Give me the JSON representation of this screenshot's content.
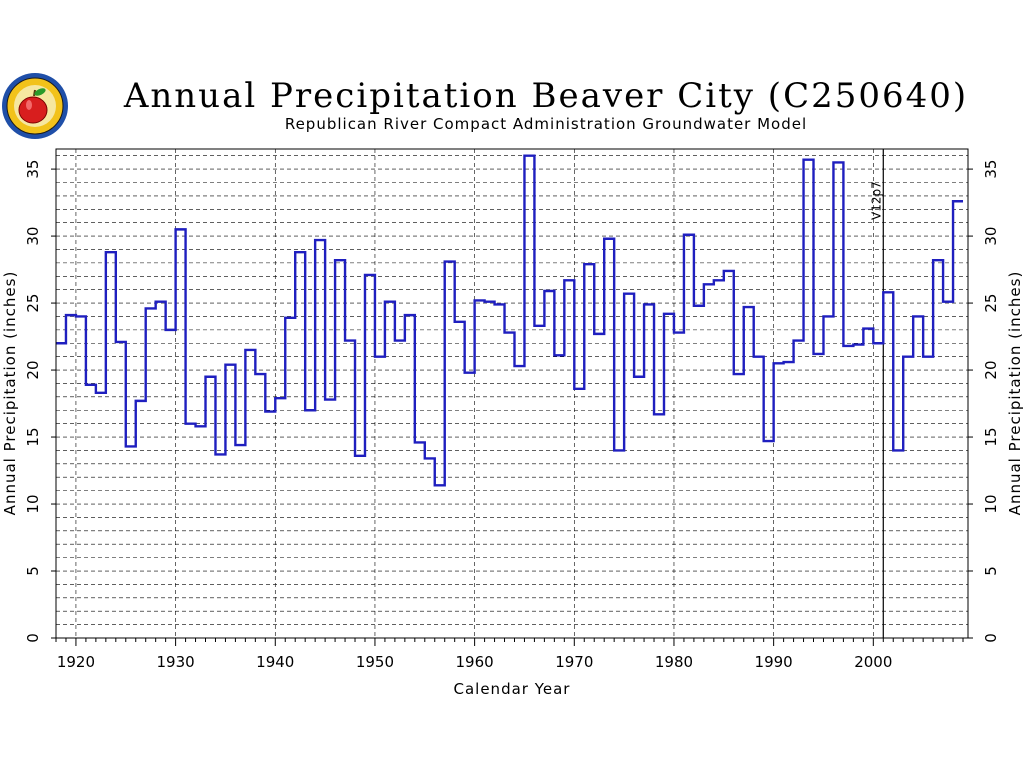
{
  "chart_data": {
    "type": "line",
    "step": true,
    "title": "Annual Precipitation Beaver City (C250640)",
    "subtitle": "Republican River Compact Administration Groundwater Model",
    "xlabel": "Calendar Year",
    "ylabel": "Annual Precipitation (inches)",
    "ylabel_right": "Annual Precipitation (inches)",
    "xlim": [
      1918,
      2009.5
    ],
    "ylim": [
      0,
      36.5
    ],
    "x_ticks": [
      1920,
      1930,
      1940,
      1950,
      1960,
      1970,
      1980,
      1990,
      2000
    ],
    "y_ticks": [
      0,
      5,
      10,
      15,
      20,
      25,
      30,
      35
    ],
    "grid": true,
    "vertical_marker": {
      "x": 2001,
      "label": "V12p7"
    },
    "series": [
      {
        "color": "#1f1fbf",
        "x": [
          1918,
          1919,
          1920,
          1921,
          1922,
          1923,
          1924,
          1925,
          1926,
          1927,
          1928,
          1929,
          1930,
          1931,
          1932,
          1933,
          1934,
          1935,
          1936,
          1937,
          1938,
          1939,
          1940,
          1941,
          1942,
          1943,
          1944,
          1945,
          1946,
          1947,
          1948,
          1949,
          1950,
          1951,
          1952,
          1953,
          1954,
          1955,
          1956,
          1957,
          1958,
          1959,
          1960,
          1961,
          1962,
          1963,
          1964,
          1965,
          1966,
          1967,
          1968,
          1969,
          1970,
          1971,
          1972,
          1973,
          1974,
          1975,
          1976,
          1977,
          1978,
          1979,
          1980,
          1981,
          1982,
          1983,
          1984,
          1985,
          1986,
          1987,
          1988,
          1989,
          1990,
          1991,
          1992,
          1993,
          1994,
          1995,
          1996,
          1997,
          1998,
          1999,
          2000,
          2001,
          2002,
          2003,
          2004,
          2005,
          2006,
          2007,
          2008
        ],
        "values": [
          22.0,
          24.1,
          24.0,
          18.9,
          18.3,
          28.8,
          22.1,
          14.3,
          17.7,
          24.6,
          25.1,
          23.0,
          30.5,
          16.0,
          15.8,
          19.5,
          13.7,
          20.4,
          14.4,
          21.5,
          19.7,
          16.9,
          17.9,
          23.9,
          28.8,
          17.0,
          29.7,
          17.8,
          28.2,
          22.2,
          13.6,
          27.1,
          21.0,
          25.1,
          22.2,
          24.1,
          14.6,
          13.4,
          11.4,
          28.1,
          23.6,
          19.8,
          25.2,
          25.1,
          24.9,
          22.8,
          20.3,
          36.0,
          23.3,
          25.9,
          21.1,
          26.7,
          18.6,
          27.9,
          22.7,
          29.8,
          14.0,
          25.7,
          19.5,
          24.9,
          16.7,
          24.2,
          22.8,
          30.1,
          24.8,
          26.4,
          26.7,
          27.4,
          19.7,
          24.7,
          21.0,
          14.7,
          20.5,
          20.6,
          22.2,
          35.7,
          21.2,
          24.0,
          35.5,
          21.8,
          21.9,
          23.1,
          22.0,
          25.8,
          14.0,
          21.0,
          24.0,
          21.0,
          28.2,
          25.1,
          32.6
        ]
      }
    ]
  }
}
